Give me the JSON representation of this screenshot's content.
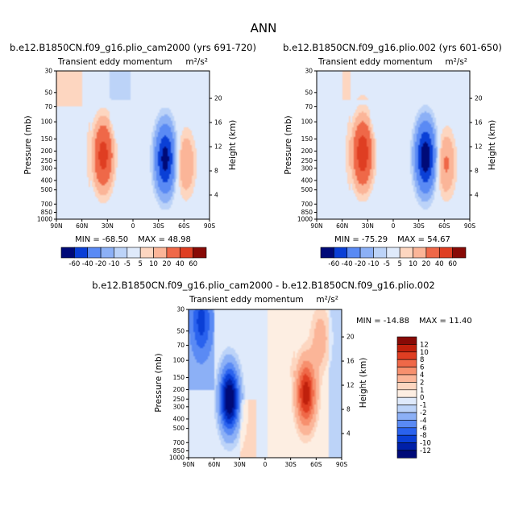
{
  "page": {
    "title": "ANN"
  },
  "chart_data": [
    {
      "type": "heatmap",
      "title": "b.e12.B1850CN.f09_g16.plio_cam2000 (yrs 691-720)",
      "subtitle_left": "Transient eddy momentum",
      "units": "m²/s²",
      "xlabel": "",
      "ylabel": "Pressure (mb)",
      "ylabel_right": "Height (km)",
      "x_ticks": [
        "90N",
        "60N",
        "30N",
        "0",
        "30S",
        "60S",
        "90S"
      ],
      "y_ticks": [
        "30",
        "50",
        "70",
        "100",
        "150",
        "200",
        "250",
        "300",
        "400",
        "500",
        "700",
        "850",
        "1000"
      ],
      "y2_ticks": [
        "20",
        "16",
        "12",
        "8",
        "4"
      ],
      "stats": {
        "min_label": "MIN = -68.50",
        "max_label": "MAX = 48.98"
      },
      "features": [
        {
          "lat": 35,
          "p": 220,
          "value": 48.98
        },
        {
          "lat": -38,
          "p": 240,
          "value": -68.5
        },
        {
          "lat": -62,
          "p": 270,
          "value": 20
        }
      ]
    },
    {
      "type": "heatmap",
      "title": "b.e12.B1850CN.f09_g16.plio.002 (yrs 601-650)",
      "subtitle_left": "Transient eddy momentum",
      "units": "m²/s²",
      "xlabel": "",
      "ylabel": "Pressure (mb)",
      "ylabel_right": "Height (km)",
      "x_ticks": [
        "90N",
        "60N",
        "30N",
        "0",
        "30S",
        "60S",
        "90S"
      ],
      "y_ticks": [
        "30",
        "50",
        "70",
        "100",
        "150",
        "200",
        "250",
        "300",
        "400",
        "500",
        "700",
        "850",
        "1000"
      ],
      "y2_ticks": [
        "20",
        "16",
        "12",
        "8",
        "4"
      ],
      "stats": {
        "min_label": "MIN = -75.29",
        "max_label": "MAX = 54.67"
      },
      "features": [
        {
          "lat": 36,
          "p": 210,
          "value": 54.67
        },
        {
          "lat": -38,
          "p": 230,
          "value": -75.29
        },
        {
          "lat": -62,
          "p": 270,
          "value": 22
        }
      ]
    },
    {
      "type": "heatmap",
      "title": "b.e12.B1850CN.f09_g16.plio_cam2000 - b.e12.B1850CN.f09_g16.plio.002",
      "subtitle_left": "Transient eddy momentum",
      "units": "m²/s²",
      "xlabel": "",
      "ylabel": "Pressure (mb)",
      "ylabel_right": "Height (km)",
      "x_ticks": [
        "90N",
        "60N",
        "30N",
        "0",
        "30S",
        "60S",
        "90S"
      ],
      "y_ticks": [
        "30",
        "50",
        "70",
        "100",
        "150",
        "200",
        "250",
        "300",
        "400",
        "500",
        "700",
        "850",
        "1000"
      ],
      "y2_ticks": [
        "20",
        "16",
        "12",
        "8",
        "4"
      ],
      "stats": {
        "min_label": "MIN = -14.88",
        "max_label": "MAX = 11.40"
      },
      "features": [
        {
          "lat": 42,
          "p": 250,
          "value": -14.88
        },
        {
          "lat": 75,
          "p": 40,
          "value": -6
        },
        {
          "lat": -48,
          "p": 220,
          "value": 11.4
        },
        {
          "lat": -65,
          "p": 60,
          "value": 3
        }
      ]
    }
  ],
  "colorbars": {
    "top": {
      "labels": [
        "-60",
        "-40",
        "-20",
        "-10",
        "-5",
        "5",
        "10",
        "20",
        "40",
        "60"
      ],
      "colors": [
        "#000a78",
        "#0020a8",
        "#0a3fd6",
        "#2a62ee",
        "#5a8af4",
        "#8cb0f6",
        "#bcd3f8",
        "#dfeafb",
        "#fdeee2",
        "#fdd6c0",
        "#fbb598",
        "#f7906e",
        "#ef6848",
        "#df3e22",
        "#c0200c",
        "#880a06"
      ]
    },
    "bottom": {
      "labels": [
        "12",
        "10",
        "8",
        "6",
        "4",
        "2",
        "1",
        "0",
        "-1",
        "-2",
        "-4",
        "-6",
        "-8",
        "-10",
        "-12"
      ],
      "colors": [
        "#880a06",
        "#c0200c",
        "#df3e22",
        "#ef6848",
        "#f7906e",
        "#fbb598",
        "#fdd6c0",
        "#fdeee2",
        "#dfeafb",
        "#bcd3f8",
        "#8cb0f6",
        "#5a8af4",
        "#2a62ee",
        "#0a3fd6",
        "#0020a8",
        "#000a78"
      ]
    }
  }
}
